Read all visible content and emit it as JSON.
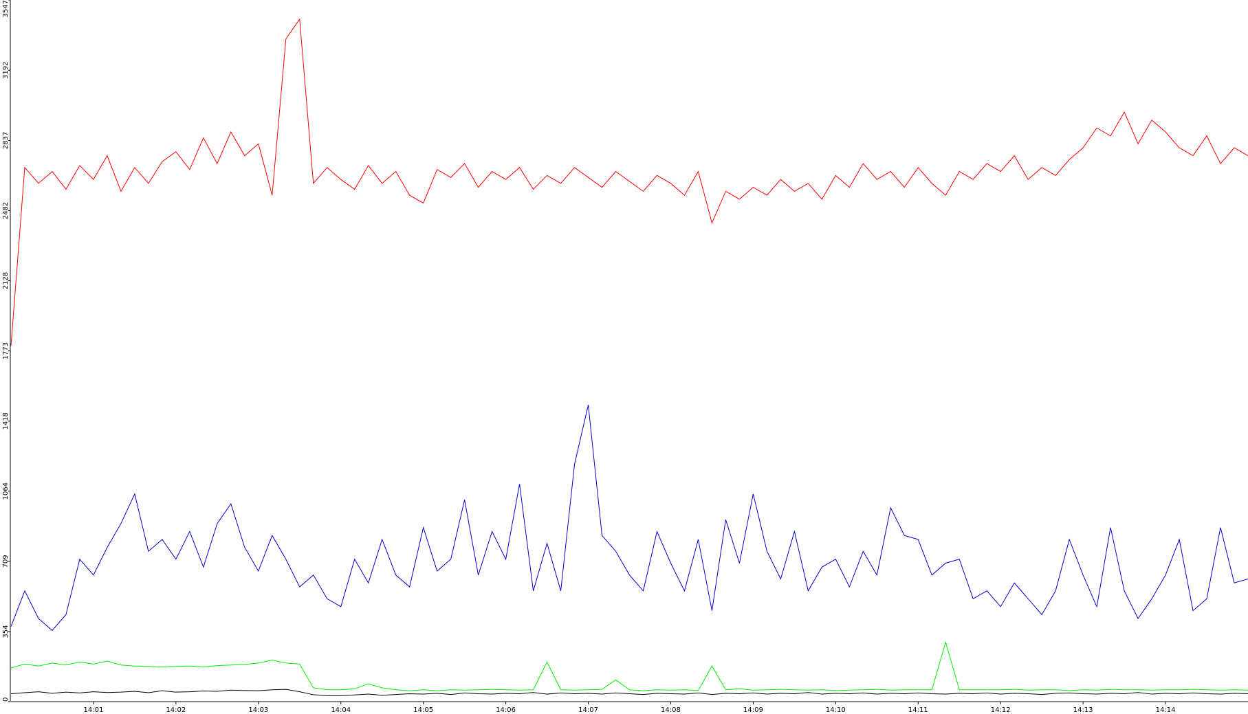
{
  "chart_data": {
    "type": "line",
    "xlim": [
      "14:00",
      "14:15"
    ],
    "xticks": [
      "14:01",
      "14:02",
      "14:03",
      "14:04",
      "14:05",
      "14:06",
      "14:07",
      "14:08",
      "14:09",
      "14:10",
      "14:11",
      "14:12",
      "14:13",
      "14:14"
    ],
    "ylim": [
      0,
      3547
    ],
    "yticks": [
      0,
      354,
      709,
      1064,
      1418,
      1773,
      2128,
      2482,
      2837,
      3192,
      3547
    ],
    "x": [
      "14:00:00",
      "14:00:10",
      "14:00:20",
      "14:00:30",
      "14:00:40",
      "14:00:50",
      "14:01:00",
      "14:01:10",
      "14:01:20",
      "14:01:30",
      "14:01:40",
      "14:01:50",
      "14:02:00",
      "14:02:10",
      "14:02:20",
      "14:02:30",
      "14:02:40",
      "14:02:50",
      "14:03:00",
      "14:03:10",
      "14:03:20",
      "14:03:30",
      "14:03:40",
      "14:03:50",
      "14:04:00",
      "14:04:10",
      "14:04:20",
      "14:04:30",
      "14:04:40",
      "14:04:50",
      "14:05:00",
      "14:05:10",
      "14:05:20",
      "14:05:30",
      "14:05:40",
      "14:05:50",
      "14:06:00",
      "14:06:10",
      "14:06:20",
      "14:06:30",
      "14:06:40",
      "14:06:50",
      "14:07:00",
      "14:07:10",
      "14:07:20",
      "14:07:30",
      "14:07:40",
      "14:07:50",
      "14:08:00",
      "14:08:10",
      "14:08:20",
      "14:08:30",
      "14:08:40",
      "14:08:50",
      "14:09:00",
      "14:09:10",
      "14:09:20",
      "14:09:30",
      "14:09:40",
      "14:09:50",
      "14:10:00",
      "14:10:10",
      "14:10:20",
      "14:10:30",
      "14:10:40",
      "14:10:50",
      "14:11:00",
      "14:11:10",
      "14:11:20",
      "14:11:30",
      "14:11:40",
      "14:11:50",
      "14:12:00",
      "14:12:10",
      "14:12:20",
      "14:12:30",
      "14:12:40",
      "14:12:50",
      "14:13:00",
      "14:13:10",
      "14:13:20",
      "14:13:30",
      "14:13:40",
      "14:13:50",
      "14:14:00",
      "14:14:10",
      "14:14:20",
      "14:14:30",
      "14:14:40",
      "14:14:50",
      "14:15:00"
    ],
    "series": [
      {
        "color": "#ff0000",
        "values": [
          1800,
          2700,
          2620,
          2680,
          2590,
          2710,
          2640,
          2760,
          2580,
          2700,
          2620,
          2730,
          2780,
          2690,
          2850,
          2720,
          2880,
          2760,
          2820,
          2560,
          3350,
          3450,
          2620,
          2700,
          2640,
          2590,
          2710,
          2620,
          2680,
          2560,
          2520,
          2690,
          2650,
          2720,
          2600,
          2680,
          2640,
          2700,
          2590,
          2660,
          2620,
          2700,
          2650,
          2600,
          2680,
          2630,
          2580,
          2660,
          2620,
          2560,
          2680,
          2420,
          2580,
          2540,
          2600,
          2560,
          2640,
          2580,
          2620,
          2540,
          2660,
          2600,
          2720,
          2640,
          2680,
          2600,
          2700,
          2620,
          2560,
          2680,
          2640,
          2720,
          2680,
          2760,
          2640,
          2700,
          2660,
          2740,
          2800,
          2900,
          2860,
          2980,
          2820,
          2940,
          2880,
          2800,
          2760,
          2860,
          2720,
          2800,
          2760
        ]
      },
      {
        "color": "#0000cc",
        "values": [
          380,
          560,
          420,
          360,
          440,
          720,
          640,
          780,
          900,
          1050,
          760,
          820,
          720,
          860,
          680,
          900,
          1000,
          780,
          660,
          840,
          720,
          580,
          640,
          520,
          480,
          720,
          600,
          820,
          640,
          580,
          880,
          660,
          720,
          1020,
          640,
          860,
          720,
          1100,
          560,
          800,
          560,
          1200,
          1500,
          840,
          760,
          640,
          560,
          860,
          700,
          560,
          820,
          460,
          920,
          700,
          1050,
          760,
          620,
          860,
          560,
          680,
          720,
          580,
          760,
          640,
          980,
          840,
          820,
          640,
          700,
          720,
          520,
          560,
          480,
          600,
          520,
          440,
          560,
          820,
          640,
          480,
          880,
          560,
          420,
          520,
          640,
          820,
          460,
          520,
          880,
          600,
          620
        ]
      },
      {
        "color": "#00ee00",
        "values": [
          170,
          190,
          180,
          195,
          185,
          200,
          190,
          205,
          185,
          180,
          178,
          175,
          178,
          180,
          176,
          182,
          185,
          188,
          195,
          210,
          195,
          190,
          70,
          60,
          60,
          65,
          90,
          70,
          60,
          55,
          60,
          55,
          60,
          58,
          60,
          62,
          60,
          58,
          60,
          200,
          60,
          58,
          60,
          62,
          110,
          60,
          55,
          60,
          58,
          60,
          56,
          180,
          60,
          65,
          58,
          60,
          62,
          60,
          58,
          60,
          56,
          58,
          60,
          62,
          58,
          60,
          60,
          60,
          300,
          60,
          60,
          60,
          60,
          62,
          58,
          60,
          60,
          56,
          60,
          58,
          62,
          60,
          60,
          58,
          60,
          60,
          62,
          60,
          58,
          60,
          58
        ]
      },
      {
        "color": "#000000",
        "values": [
          40,
          45,
          50,
          42,
          48,
          44,
          50,
          46,
          48,
          52,
          45,
          55,
          48,
          50,
          54,
          52,
          58,
          56,
          55,
          60,
          62,
          50,
          35,
          30,
          30,
          34,
          38,
          32,
          36,
          40,
          38,
          42,
          36,
          44,
          40,
          38,
          42,
          40,
          46,
          38,
          44,
          40,
          42,
          38,
          44,
          40,
          36,
          42,
          40,
          38,
          44,
          36,
          42,
          40,
          44,
          38,
          42,
          40,
          46,
          38,
          42,
          40,
          44,
          38,
          42,
          40,
          44,
          40,
          38,
          42,
          40,
          44,
          38,
          42,
          40,
          36,
          42,
          44,
          40,
          38,
          42,
          40,
          46,
          38,
          42,
          40,
          44,
          40,
          38,
          42,
          40
        ]
      }
    ]
  }
}
